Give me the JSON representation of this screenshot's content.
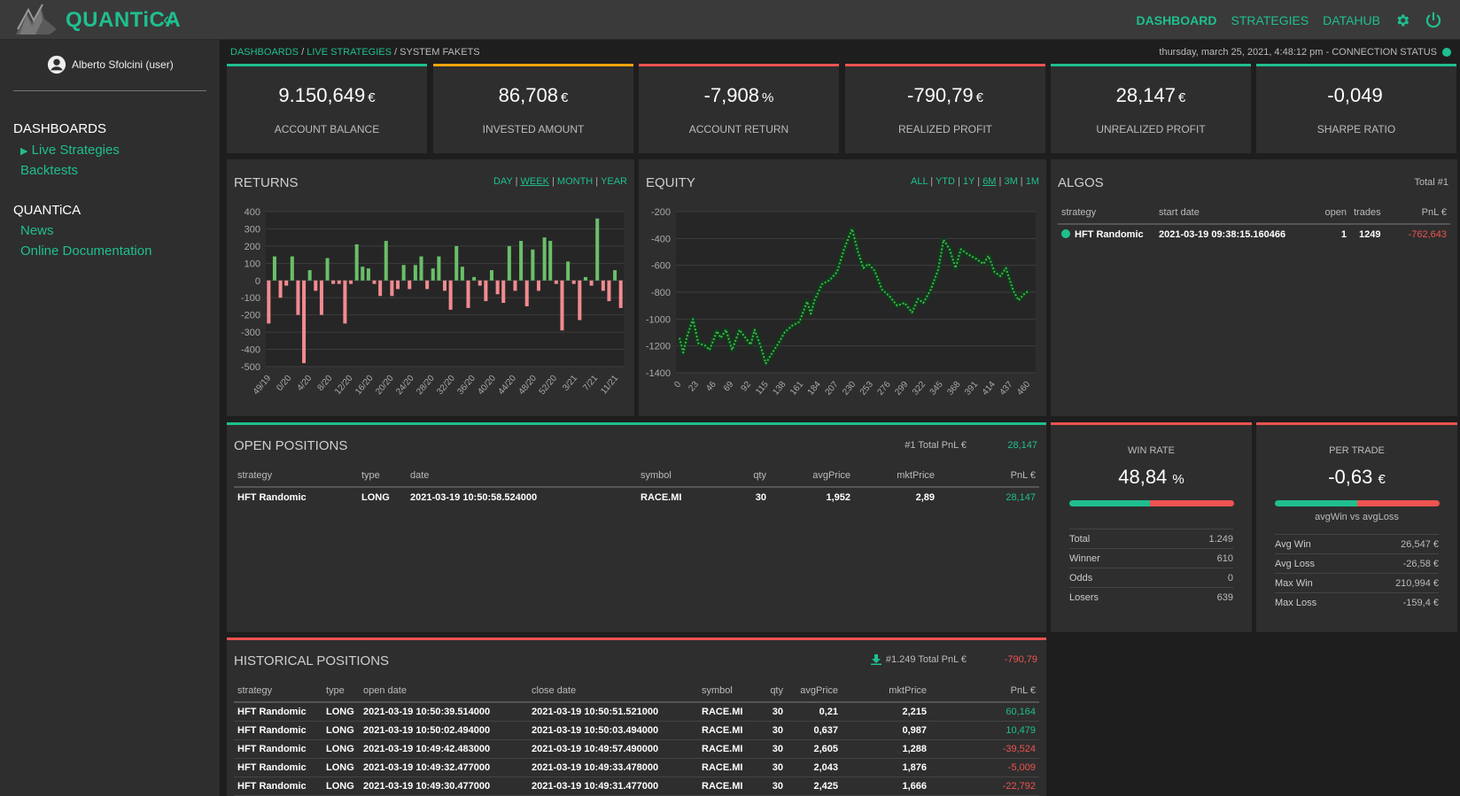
{
  "app": {
    "brand": "QUANTiCA",
    "collapse_icon": "«"
  },
  "topnav": [
    {
      "label": "DASHBOARD",
      "active": true
    },
    {
      "label": "STRATEGIES"
    },
    {
      "label": "DATAHUB"
    }
  ],
  "user": {
    "name": "Alberto Sfolcini (user)"
  },
  "sidebar": {
    "sections": [
      {
        "heading": "DASHBOARDS",
        "items": [
          "Live Strategies",
          "Backtests"
        ]
      },
      {
        "heading": "QUANTiCA",
        "items": [
          "News",
          "Online Documentation"
        ]
      }
    ]
  },
  "breadcrumb": {
    "part1": "DASHBOARDS",
    "sep1": " / ",
    "part2": "LIVE STRATEGIES",
    "sep2": " / ",
    "current": "SYSTEM FAKETS"
  },
  "status": {
    "text": "thursday, march 25, 2021, 4:48:12 pm - CONNECTION STATUS"
  },
  "kpis": [
    {
      "value": "9.150,649",
      "unit": "€",
      "label": "ACCOUNT BALANCE",
      "color": "#1fbf8f"
    },
    {
      "value": "86,708",
      "unit": "€",
      "label": "INVESTED AMOUNT",
      "color": "#f0a30a"
    },
    {
      "value": "-7,908",
      "unit": "%",
      "label": "ACCOUNT RETURN",
      "color": "#ef5350"
    },
    {
      "value": "-790,79",
      "unit": "€",
      "label": "REALIZED PROFIT",
      "color": "#ef5350"
    },
    {
      "value": "28,147",
      "unit": "€",
      "label": "UNREALIZED PROFIT",
      "color": "#1fbf8f"
    },
    {
      "value": "-0,049",
      "unit": "",
      "label": "SHARPE RATIO",
      "color": "#1fbf8f"
    }
  ],
  "returns": {
    "title": "RETURNS",
    "ranges": [
      {
        "label": "DAY"
      },
      {
        "label": "WEEK",
        "selected": true
      },
      {
        "label": "MONTH"
      },
      {
        "label": "YEAR"
      }
    ]
  },
  "equity": {
    "title": "EQUITY",
    "ranges": [
      {
        "label": "ALL"
      },
      {
        "label": "YTD"
      },
      {
        "label": "1Y"
      },
      {
        "label": "6M",
        "selected": true
      },
      {
        "label": "3M"
      },
      {
        "label": "1M"
      }
    ]
  },
  "chart_data": [
    {
      "type": "bar",
      "ylim": [
        -500,
        400
      ],
      "yticks": [
        400,
        300,
        200,
        100,
        0,
        -100,
        -200,
        -300,
        -400,
        -500
      ],
      "xtick_labels": [
        "49/19",
        "0/20",
        "4/20",
        "8/20",
        "12/20",
        "16/20",
        "20/20",
        "24/20",
        "28/20",
        "32/20",
        "36/20",
        "40/20",
        "44/20",
        "48/20",
        "52/20",
        "3/21",
        "7/21",
        "11/21"
      ],
      "values": [
        -250,
        140,
        -100,
        -30,
        140,
        -200,
        -480,
        60,
        -60,
        -200,
        130,
        -20,
        -20,
        -250,
        -20,
        210,
        80,
        70,
        -20,
        -90,
        230,
        -90,
        -50,
        90,
        -50,
        90,
        140,
        -50,
        70,
        140,
        -60,
        -170,
        200,
        80,
        -160,
        20,
        -30,
        -120,
        60,
        -80,
        -130,
        200,
        -60,
        230,
        -150,
        180,
        -60,
        250,
        230,
        -20,
        -290,
        110,
        -20,
        -230,
        20,
        -30,
        360,
        -60,
        -120,
        60,
        -160
      ]
    },
    {
      "type": "line",
      "ylim": [
        -1400,
        -200
      ],
      "yticks": [
        -200,
        -400,
        -600,
        -800,
        -1000,
        -1200,
        -1400
      ],
      "xtick_labels": [
        "0",
        "23",
        "46",
        "69",
        "92",
        "115",
        "138",
        "161",
        "184",
        "207",
        "230",
        "253",
        "276",
        "299",
        "322",
        "345",
        "368",
        "391",
        "414",
        "437",
        "460"
      ],
      "x_keypoints": [
        0,
        5,
        10,
        18,
        25,
        35,
        40,
        50,
        55,
        62,
        70,
        80,
        88,
        95,
        100,
        108,
        115,
        125,
        132,
        140,
        150,
        160,
        170,
        175,
        180,
        190,
        200,
        210,
        220,
        230,
        238,
        245,
        252,
        260,
        270,
        280,
        290,
        300,
        310,
        318,
        325,
        335,
        345,
        352,
        360,
        368,
        375,
        385,
        395,
        405,
        412,
        420,
        428,
        435,
        445,
        452,
        460,
        466
      ],
      "y_keypoints": [
        -1140,
        -1250,
        -1130,
        -1000,
        -1180,
        -1200,
        -1230,
        -1090,
        -1140,
        -1080,
        -1230,
        -1080,
        -1140,
        -1190,
        -1080,
        -1200,
        -1330,
        -1240,
        -1180,
        -1100,
        -1050,
        -1020,
        -870,
        -960,
        -860,
        -740,
        -710,
        -650,
        -470,
        -330,
        -500,
        -620,
        -590,
        -640,
        -780,
        -830,
        -900,
        -880,
        -950,
        -850,
        -880,
        -780,
        -630,
        -410,
        -480,
        -620,
        -480,
        -520,
        -550,
        -590,
        -530,
        -650,
        -680,
        -620,
        -790,
        -860,
        -810,
        -790
      ]
    }
  ],
  "algos": {
    "title": "ALGOS",
    "total": "Total #1",
    "columns": [
      "strategy",
      "start date",
      "open",
      "trades",
      "PnL €"
    ],
    "rows": [
      {
        "strategy": "HFT Randomic",
        "start": "2021-03-19 09:38:15.160466",
        "open": "1",
        "trades": "1249",
        "pnl": "-762,643"
      }
    ]
  },
  "open_positions": {
    "title": "OPEN POSITIONS",
    "total_label": "#1 Total PnL €",
    "total_value": "28,147",
    "columns": [
      "strategy",
      "type",
      "date",
      "symbol",
      "qty",
      "avgPrice",
      "mktPrice",
      "PnL €"
    ],
    "rows": [
      {
        "strategy": "HFT Randomic",
        "type": "LONG",
        "date": "2021-03-19 10:50:58.524000",
        "symbol": "RACE.MI",
        "qty": "30",
        "avg": "1,952",
        "mkt": "2,89",
        "pnl": "28,147",
        "pos": true
      }
    ]
  },
  "win_rate": {
    "title": "WIN RATE",
    "value": "48,84",
    "unit": "%",
    "fraction": 0.4884,
    "rows": [
      {
        "label": "Total",
        "value": "1.249"
      },
      {
        "label": "Winner",
        "value": "610"
      },
      {
        "label": "Odds",
        "value": "0"
      },
      {
        "label": "Losers",
        "value": "639"
      }
    ]
  },
  "per_trade": {
    "title": "PER TRADE",
    "value": "-0,63",
    "unit": "€",
    "subtitle": "avgWin vs avgLoss",
    "fraction": 0.5,
    "rows": [
      {
        "label": "Avg Win",
        "value": "26,547 €"
      },
      {
        "label": "Avg Loss",
        "value": "-26,58 €"
      },
      {
        "label": "Max Win",
        "value": "210,994 €"
      },
      {
        "label": "Max Loss",
        "value": "-159,4 €"
      }
    ]
  },
  "historical": {
    "title": "HISTORICAL POSITIONS",
    "total_label": "#1.249 Total PnL €",
    "total_value": "-790,79",
    "columns": [
      "strategy",
      "type",
      "open date",
      "close date",
      "symbol",
      "qty",
      "avgPrice",
      "mktPrice",
      "PnL €"
    ],
    "rows": [
      {
        "strategy": "HFT Randomic",
        "type": "LONG",
        "open": "2021-03-19 10:50:39.514000",
        "close": "2021-03-19 10:50:51.521000",
        "symbol": "RACE.MI",
        "qty": "30",
        "avg": "0,21",
        "mkt": "2,215",
        "pnl": "60,164",
        "pos": true
      },
      {
        "strategy": "HFT Randomic",
        "type": "LONG",
        "open": "2021-03-19 10:50:02.494000",
        "close": "2021-03-19 10:50:03.494000",
        "symbol": "RACE.MI",
        "qty": "30",
        "avg": "0,637",
        "mkt": "0,987",
        "pnl": "10,479",
        "pos": true
      },
      {
        "strategy": "HFT Randomic",
        "type": "LONG",
        "open": "2021-03-19 10:49:42.483000",
        "close": "2021-03-19 10:49:57.490000",
        "symbol": "RACE.MI",
        "qty": "30",
        "avg": "2,605",
        "mkt": "1,288",
        "pnl": "-39,524",
        "pos": false
      },
      {
        "strategy": "HFT Randomic",
        "type": "LONG",
        "open": "2021-03-19 10:49:32.477000",
        "close": "2021-03-19 10:49:33.478000",
        "symbol": "RACE.MI",
        "qty": "30",
        "avg": "2,043",
        "mkt": "1,876",
        "pnl": "-5,009",
        "pos": false
      },
      {
        "strategy": "HFT Randomic",
        "type": "LONG",
        "open": "2021-03-19 10:49:30.477000",
        "close": "2021-03-19 10:49:31.477000",
        "symbol": "RACE.MI",
        "qty": "30",
        "avg": "2,425",
        "mkt": "1,666",
        "pnl": "-22,792",
        "pos": false
      }
    ]
  },
  "icons": {
    "logo": "quantica-logo-icon",
    "settings": "gear-icon",
    "power": "power-icon",
    "user": "user-icon",
    "download": "download-icon"
  }
}
